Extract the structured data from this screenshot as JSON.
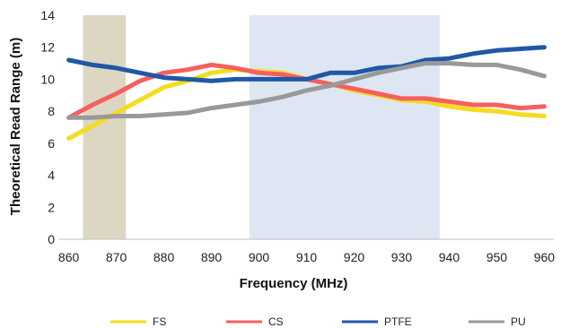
{
  "chart_data": {
    "type": "line",
    "xlabel": "Frequency (MHz)",
    "ylabel": "Theoretical Read Range (m)",
    "xlim": [
      858,
      962
    ],
    "ylim": [
      0,
      14
    ],
    "x_ticks": [
      860,
      870,
      880,
      890,
      900,
      910,
      920,
      930,
      940,
      950,
      960
    ],
    "y_ticks": [
      0,
      2,
      4,
      6,
      8,
      10,
      12,
      14
    ],
    "grid": false,
    "legend_position": "bottom",
    "bands": [
      {
        "x0": 863,
        "x1": 872,
        "color": "#dcd7c3"
      },
      {
        "x0": 898,
        "x1": 938,
        "color": "#dde6f2"
      }
    ],
    "x": [
      860,
      865,
      870,
      875,
      880,
      885,
      890,
      895,
      900,
      905,
      910,
      915,
      920,
      925,
      930,
      935,
      940,
      945,
      950,
      955,
      960
    ],
    "series": [
      {
        "name": "FS",
        "color": "#f5dc1c",
        "values": [
          6.3,
          7.1,
          7.9,
          8.7,
          9.5,
          9.9,
          10.4,
          10.6,
          10.5,
          10.4,
          10.0,
          9.7,
          9.3,
          9.0,
          8.7,
          8.6,
          8.3,
          8.1,
          8.0,
          7.8,
          7.7
        ]
      },
      {
        "name": "CS",
        "color": "#f5605f",
        "values": [
          7.6,
          8.4,
          9.1,
          9.9,
          10.4,
          10.6,
          10.9,
          10.7,
          10.4,
          10.3,
          10.0,
          9.7,
          9.4,
          9.1,
          8.8,
          8.8,
          8.6,
          8.4,
          8.4,
          8.2,
          8.3
        ]
      },
      {
        "name": "PTFE",
        "color": "#1f58a6",
        "values": [
          11.2,
          10.9,
          10.7,
          10.4,
          10.1,
          10.0,
          9.9,
          10.0,
          10.0,
          10.0,
          10.0,
          10.4,
          10.4,
          10.7,
          10.8,
          11.2,
          11.3,
          11.6,
          11.8,
          11.9,
          12.0
        ]
      },
      {
        "name": "PU",
        "color": "#999999",
        "values": [
          7.6,
          7.6,
          7.7,
          7.7,
          7.8,
          7.9,
          8.2,
          8.4,
          8.6,
          8.9,
          9.3,
          9.6,
          10.0,
          10.4,
          10.7,
          11.0,
          11.0,
          10.9,
          10.9,
          10.6,
          10.2
        ]
      }
    ]
  }
}
